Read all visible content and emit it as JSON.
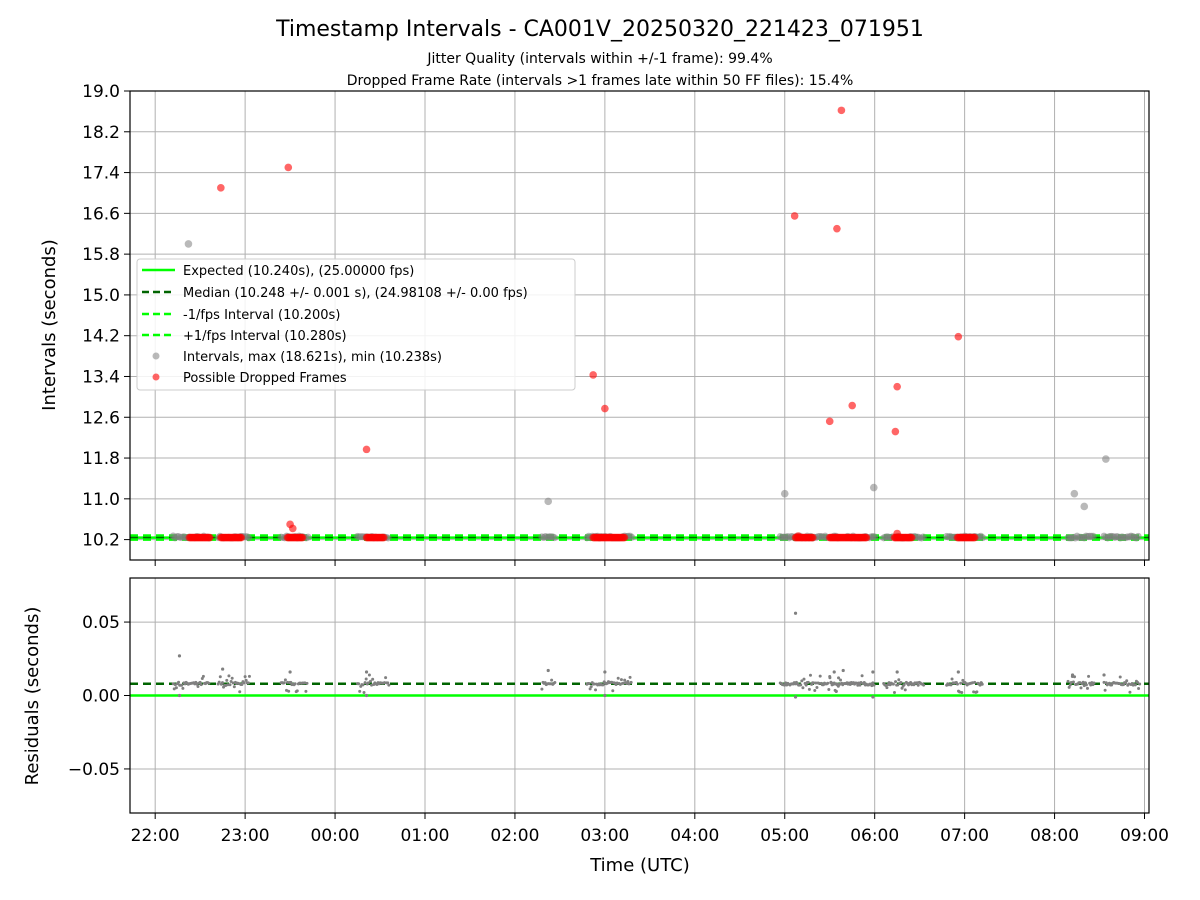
{
  "figure": {
    "title": "Timestamp Intervals - CA001V_20250320_221423_071951",
    "subtitle_1": "Jitter Quality (intervals within +/-1 frame): 99.4%",
    "subtitle_2": "Dropped Frame Rate (intervals >1 frames late within 50 FF files): 15.4%"
  },
  "colors": {
    "expected": "#00ff00",
    "median": "#006400",
    "fps_band": "#00ff00",
    "intervals": "#808080",
    "dropped": "#ff0000",
    "grid": "#b0b0b0"
  },
  "chart_data": [
    {
      "type": "scatter",
      "panel": "intervals",
      "xlabel": "",
      "ylabel": "Intervals (seconds)",
      "x_unit": "hours UTC (continuing past 24:00 for times after midnight)",
      "xlim": [
        21.72,
        33.05
      ],
      "ylim": [
        9.8,
        19.0
      ],
      "yticks": [
        10.2,
        11.0,
        11.8,
        12.6,
        13.4,
        14.2,
        15.0,
        15.8,
        16.6,
        17.4,
        18.2,
        19.0
      ],
      "ytick_labels": [
        "10.2",
        "11.0",
        "11.8",
        "12.6",
        "13.4",
        "14.2",
        "15.0",
        "15.8",
        "16.6",
        "17.4",
        "18.2",
        "19.0"
      ],
      "grid": true,
      "legend_position": "center-left",
      "reference_lines": [
        {
          "name": "Expected (10.240s), (25.00000 fps)",
          "y": 10.24,
          "style": "solid",
          "color": "#00ff00"
        },
        {
          "name": "Median (10.248 +/- 0.001 s), (24.98108 +/- 0.00 fps)",
          "y": 10.248,
          "style": "dashed",
          "color": "#006400"
        },
        {
          "name": "-1/fps Interval (10.200s)",
          "y": 10.2,
          "style": "dashed",
          "color": "#00ff00"
        },
        {
          "name": "+1/fps Interval (10.280s)",
          "y": 10.28,
          "style": "dashed",
          "color": "#00ff00"
        }
      ],
      "series": [
        {
          "name": "Intervals, max (18.621s), min (10.238s)",
          "color": "#808080",
          "points": [
            [
              22.37,
              16.0
            ],
            [
              26.37,
              10.95
            ],
            [
              29.0,
              11.1
            ],
            [
              29.99,
              11.22
            ],
            [
              32.22,
              11.1
            ],
            [
              32.33,
              10.85
            ],
            [
              32.57,
              11.78
            ]
          ],
          "baseline_clusters": [
            [
              22.2,
              22.6
            ],
            [
              22.7,
              23.05
            ],
            [
              23.4,
              23.7
            ],
            [
              24.25,
              24.6
            ],
            [
              26.3,
              26.45
            ],
            [
              26.8,
              27.3
            ],
            [
              28.95,
              29.6
            ],
            [
              29.7,
              30.0
            ],
            [
              30.1,
              30.55
            ],
            [
              30.8,
              31.2
            ],
            [
              32.15,
              32.45
            ],
            [
              32.55,
              32.95
            ]
          ],
          "baseline_y": 10.25
        },
        {
          "name": "Possible Dropped Frames",
          "color": "#ff0000",
          "points": [
            [
              22.73,
              17.1
            ],
            [
              23.48,
              17.5
            ],
            [
              24.35,
              11.97
            ],
            [
              26.87,
              13.43
            ],
            [
              27.0,
              12.77
            ],
            [
              29.11,
              16.55
            ],
            [
              29.58,
              16.3
            ],
            [
              29.63,
              18.62
            ],
            [
              29.75,
              12.83
            ],
            [
              29.5,
              12.52
            ],
            [
              30.25,
              13.2
            ],
            [
              30.23,
              12.32
            ],
            [
              30.93,
              14.18
            ],
            [
              23.5,
              10.5
            ],
            [
              23.53,
              10.42
            ],
            [
              29.15,
              10.27
            ],
            [
              30.25,
              10.32
            ]
          ],
          "runs": [
            [
              22.38,
              22.62
            ],
            [
              22.73,
              22.97
            ],
            [
              23.47,
              23.65
            ],
            [
              24.35,
              24.55
            ],
            [
              26.87,
              27.22
            ],
            [
              29.12,
              29.32
            ],
            [
              29.5,
              29.92
            ],
            [
              30.22,
              30.42
            ],
            [
              30.92,
              31.12
            ]
          ],
          "run_y": 10.24
        }
      ]
    },
    {
      "type": "scatter",
      "panel": "residuals",
      "xlabel": "Time (UTC)",
      "ylabel": "Residuals (seconds)",
      "xlim": [
        21.72,
        33.05
      ],
      "ylim": [
        -0.08,
        0.08
      ],
      "yticks": [
        -0.05,
        0.0,
        0.05
      ],
      "ytick_labels": [
        "−0.05",
        "0.00",
        "0.05"
      ],
      "xticks": [
        22,
        23,
        24,
        25,
        26,
        27,
        28,
        29,
        30,
        31,
        32,
        33
      ],
      "xtick_labels": [
        "22:00",
        "23:00",
        "00:00",
        "01:00",
        "02:00",
        "03:00",
        "04:00",
        "05:00",
        "06:00",
        "07:00",
        "08:00",
        "09:00"
      ],
      "grid": true,
      "reference_lines": [
        {
          "name": "Expected",
          "y": 0.0,
          "style": "solid",
          "color": "#00ff00"
        },
        {
          "name": "Median",
          "y": 0.008,
          "style": "dashed",
          "color": "#006400"
        }
      ],
      "series": [
        {
          "name": "Residuals",
          "color": "#808080",
          "outliers": [
            [
              22.27,
              0.027
            ],
            [
              22.75,
              0.018
            ],
            [
              23.5,
              0.016
            ],
            [
              24.35,
              0.016
            ],
            [
              26.37,
              0.017
            ],
            [
              27.0,
              0.016
            ],
            [
              29.12,
              0.056
            ],
            [
              29.55,
              0.016
            ],
            [
              29.65,
              0.017
            ],
            [
              29.98,
              0.016
            ],
            [
              30.25,
              0.016
            ],
            [
              30.93,
              0.016
            ],
            [
              32.2,
              0.014
            ],
            [
              32.55,
              0.014
            ],
            [
              22.27,
              0.0
            ],
            [
              24.35,
              0.0
            ],
            [
              27.0,
              0.0
            ],
            [
              29.12,
              -0.001
            ],
            [
              29.98,
              -0.001
            ]
          ],
          "clusters": [
            [
              22.2,
              22.6
            ],
            [
              22.7,
              23.05
            ],
            [
              23.4,
              23.7
            ],
            [
              24.25,
              24.6
            ],
            [
              26.3,
              26.45
            ],
            [
              26.8,
              27.3
            ],
            [
              28.95,
              29.6
            ],
            [
              29.5,
              30.0
            ],
            [
              30.1,
              30.55
            ],
            [
              30.8,
              31.2
            ],
            [
              32.15,
              32.45
            ],
            [
              32.55,
              32.95
            ]
          ],
          "baseline": 0.008
        }
      ]
    }
  ]
}
